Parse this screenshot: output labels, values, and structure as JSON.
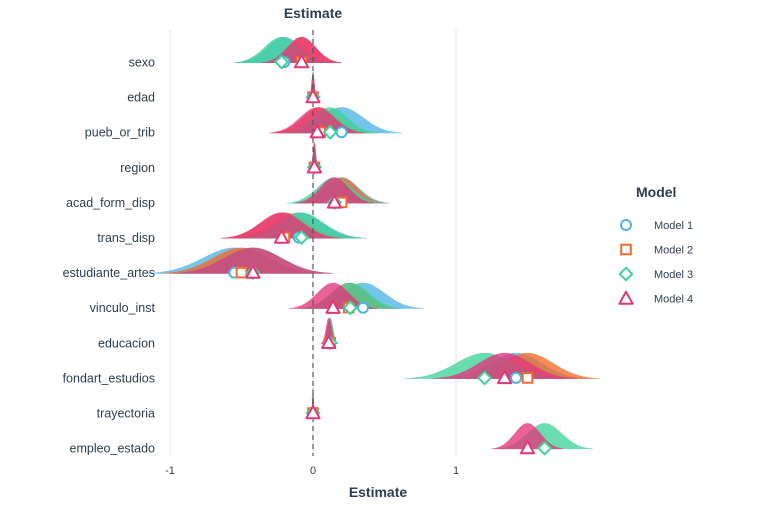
{
  "chart_data": {
    "type": "ridgeline-coefficient",
    "title": "Estimate",
    "xlabel": "Estimate",
    "ylabel": "",
    "xlim": [
      -1.0,
      1.8
    ],
    "x_ticks": [
      -1,
      0,
      1
    ],
    "x_tick_labels": [
      "-1",
      "0",
      "1"
    ],
    "reference_line": 0,
    "grid": "vertical major",
    "legend_title": "Model",
    "legend_position": "right",
    "terms": [
      "sexo",
      "edad",
      "pueb_or_trib",
      "region",
      "acad_form_disp",
      "trans_disp",
      "estudiante_artes",
      "vinculo_inst",
      "educacion",
      "fondart_estudios",
      "trayectoria",
      "empleo_estado"
    ],
    "series": [
      {
        "name": "Model 1",
        "color": "#4eb3e3",
        "shape": "circle",
        "estimates": [
          -0.2,
          0.0,
          0.2,
          0.01,
          0.2,
          -0.1,
          -0.55,
          0.35,
          0.12,
          1.42,
          0.0,
          null
        ],
        "spread": [
          0.12,
          0.01,
          0.15,
          0.01,
          0.12,
          0.17,
          0.22,
          0.15,
          0.02,
          0.18,
          0.005,
          null
        ]
      },
      {
        "name": "Model 2",
        "color": "#f26b2a",
        "shape": "square",
        "estimates": [
          -0.08,
          0.0,
          0.05,
          0.01,
          0.2,
          -0.2,
          -0.5,
          0.25,
          0.12,
          1.5,
          0.0,
          null
        ],
        "spread": [
          0.1,
          0.01,
          0.12,
          0.01,
          0.11,
          0.16,
          0.2,
          0.12,
          0.02,
          0.18,
          0.005,
          null
        ]
      },
      {
        "name": "Model 3",
        "color": "#3fd29a",
        "shape": "diamond",
        "estimates": [
          -0.22,
          0.0,
          0.12,
          0.01,
          0.15,
          -0.08,
          -0.42,
          0.26,
          0.12,
          1.2,
          0.0,
          1.62
        ],
        "spread": [
          0.12,
          0.01,
          0.12,
          0.01,
          0.12,
          0.15,
          0.2,
          0.13,
          0.02,
          0.2,
          0.005,
          0.12
        ]
      },
      {
        "name": "Model 4",
        "color": "#e4357a",
        "shape": "triangle",
        "estimates": [
          -0.08,
          0.0,
          0.03,
          0.01,
          0.15,
          -0.22,
          -0.42,
          0.14,
          0.11,
          1.34,
          0.0,
          1.5
        ],
        "spread": [
          0.1,
          0.01,
          0.12,
          0.01,
          0.1,
          0.15,
          0.2,
          0.11,
          0.02,
          0.18,
          0.005,
          0.09
        ]
      }
    ]
  }
}
